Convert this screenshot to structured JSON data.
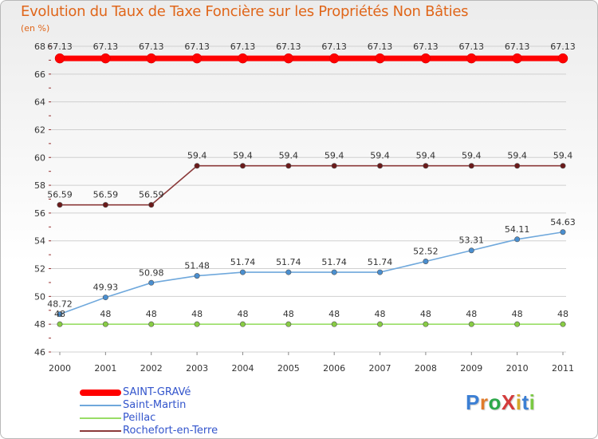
{
  "title": "Evolution du Taux de Taxe Foncière sur les Propriétés Non Bâties",
  "unit_label": "(en %)",
  "logo_text": "ProXiti",
  "colors": {
    "title": "#e0661a",
    "grid": "#d0d0d0",
    "axis_text": "#333333",
    "legend_text": "#3355cc"
  },
  "chart_data": {
    "type": "line",
    "title": "Evolution du Taux de Taxe Foncière sur les Propriétés Non Bâties",
    "ylabel": "(en %)",
    "xlabel": "",
    "x": [
      "2000",
      "2001",
      "2002",
      "2003",
      "2004",
      "2005",
      "2006",
      "2007",
      "2008",
      "2009",
      "2010",
      "2011"
    ],
    "ylim": [
      46,
      68
    ],
    "yticks": [
      46,
      48,
      50,
      52,
      54,
      56,
      58,
      60,
      62,
      64,
      66,
      68
    ],
    "grid": "y-major",
    "series": [
      {
        "name": "SAINT-GRAVé",
        "color": "#ff0000",
        "style": "thick",
        "values": [
          67.13,
          67.13,
          67.13,
          67.13,
          67.13,
          67.13,
          67.13,
          67.13,
          67.13,
          67.13,
          67.13,
          67.13
        ],
        "labels": [
          "67.13",
          "67.13",
          "67.13",
          "67.13",
          "67.13",
          "67.13",
          "67.13",
          "67.13",
          "67.13",
          "67.13",
          "67.13",
          "67.13"
        ]
      },
      {
        "name": "Saint-Martin",
        "color": "#6fa8dc",
        "marker": "#4a8fd0",
        "values": [
          48.72,
          49.93,
          50.98,
          51.48,
          51.74,
          51.74,
          51.74,
          51.74,
          52.52,
          53.31,
          54.11,
          54.63
        ],
        "labels": [
          "48.72",
          "49.93",
          "50.98",
          "51.48",
          "51.74",
          "51.74",
          "51.74",
          "51.74",
          "52.52",
          "53.31",
          "54.11",
          "54.63"
        ]
      },
      {
        "name": "Peillac",
        "color": "#99dd66",
        "marker": "#88cc44",
        "values": [
          48,
          48,
          48,
          48,
          48,
          48,
          48,
          48,
          48,
          48,
          48,
          48
        ],
        "labels": [
          "48",
          "48",
          "48",
          "48",
          "48",
          "48",
          "48",
          "48",
          "48",
          "48",
          "48",
          "48"
        ]
      },
      {
        "name": "Rochefort-en-Terre",
        "color": "#8b3a3a",
        "marker": "#6b1a1a",
        "values": [
          56.59,
          56.59,
          56.59,
          59.4,
          59.4,
          59.4,
          59.4,
          59.4,
          59.4,
          59.4,
          59.4,
          59.4
        ],
        "labels": [
          "56.59",
          "56.59",
          "56.59",
          "59.4",
          "59.4",
          "59.4",
          "59.4",
          "59.4",
          "59.4",
          "59.4",
          "59.4",
          "59.4"
        ]
      }
    ],
    "legend_placement": "bottom-left"
  }
}
